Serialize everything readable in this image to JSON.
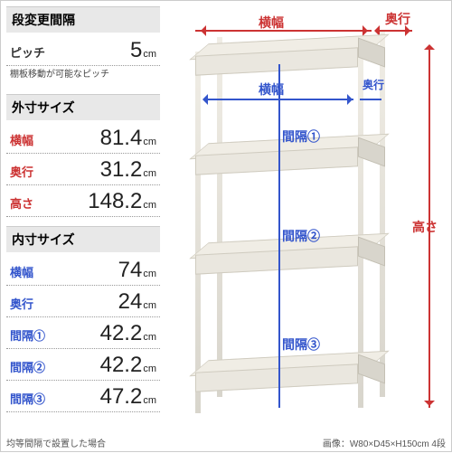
{
  "colors": {
    "red": "#cc3333",
    "blue": "#3355cc",
    "header_bg": "#e8e8e8",
    "shelf_light": "#eae7df",
    "shelf_dark": "#d8d5cc",
    "border": "#cfcbbf"
  },
  "typography": {
    "title_fontsize": 14,
    "label_fontsize": 13,
    "value_fontsize": 24,
    "unit_fontsize": 11,
    "caption_fontsize": 10
  },
  "pitch": {
    "title": "段変更間隔",
    "label": "ピッチ",
    "value": "5",
    "unit": "cm",
    "note": "棚板移動が可能なピッチ"
  },
  "outer": {
    "title": "外寸サイズ",
    "rows": [
      {
        "label": "横幅",
        "value": "81.4",
        "unit": "cm",
        "cls": "red"
      },
      {
        "label": "奥行",
        "value": "31.2",
        "unit": "cm",
        "cls": "red"
      },
      {
        "label": "高さ",
        "value": "148.2",
        "unit": "cm",
        "cls": "red"
      }
    ]
  },
  "inner": {
    "title": "内寸サイズ",
    "rows": [
      {
        "label": "横幅",
        "value": "74",
        "unit": "cm",
        "cls": "blue"
      },
      {
        "label": "奥行",
        "value": "24",
        "unit": "cm",
        "cls": "blue"
      },
      {
        "label": "間隔①",
        "value": "42.2",
        "unit": "cm",
        "cls": "blue"
      },
      {
        "label": "間隔②",
        "value": "42.2",
        "unit": "cm",
        "cls": "blue"
      },
      {
        "label": "間隔③",
        "value": "47.2",
        "unit": "cm",
        "cls": "blue"
      }
    ]
  },
  "footer": "均等間隔で設置した場合",
  "img_caption": "画像：W80×D45×H150cm 4段",
  "diagram": {
    "outer_labels": {
      "width": "横幅",
      "depth": "奥行",
      "height": "高さ"
    },
    "inner_labels": {
      "width": "横幅",
      "depth": "奥行",
      "g1": "間隔①",
      "g2": "間隔②",
      "g3": "間隔③"
    },
    "boards_y": [
      50,
      160,
      270,
      400
    ],
    "post_height": 400,
    "front_width": 180,
    "depth_skew": 30
  }
}
